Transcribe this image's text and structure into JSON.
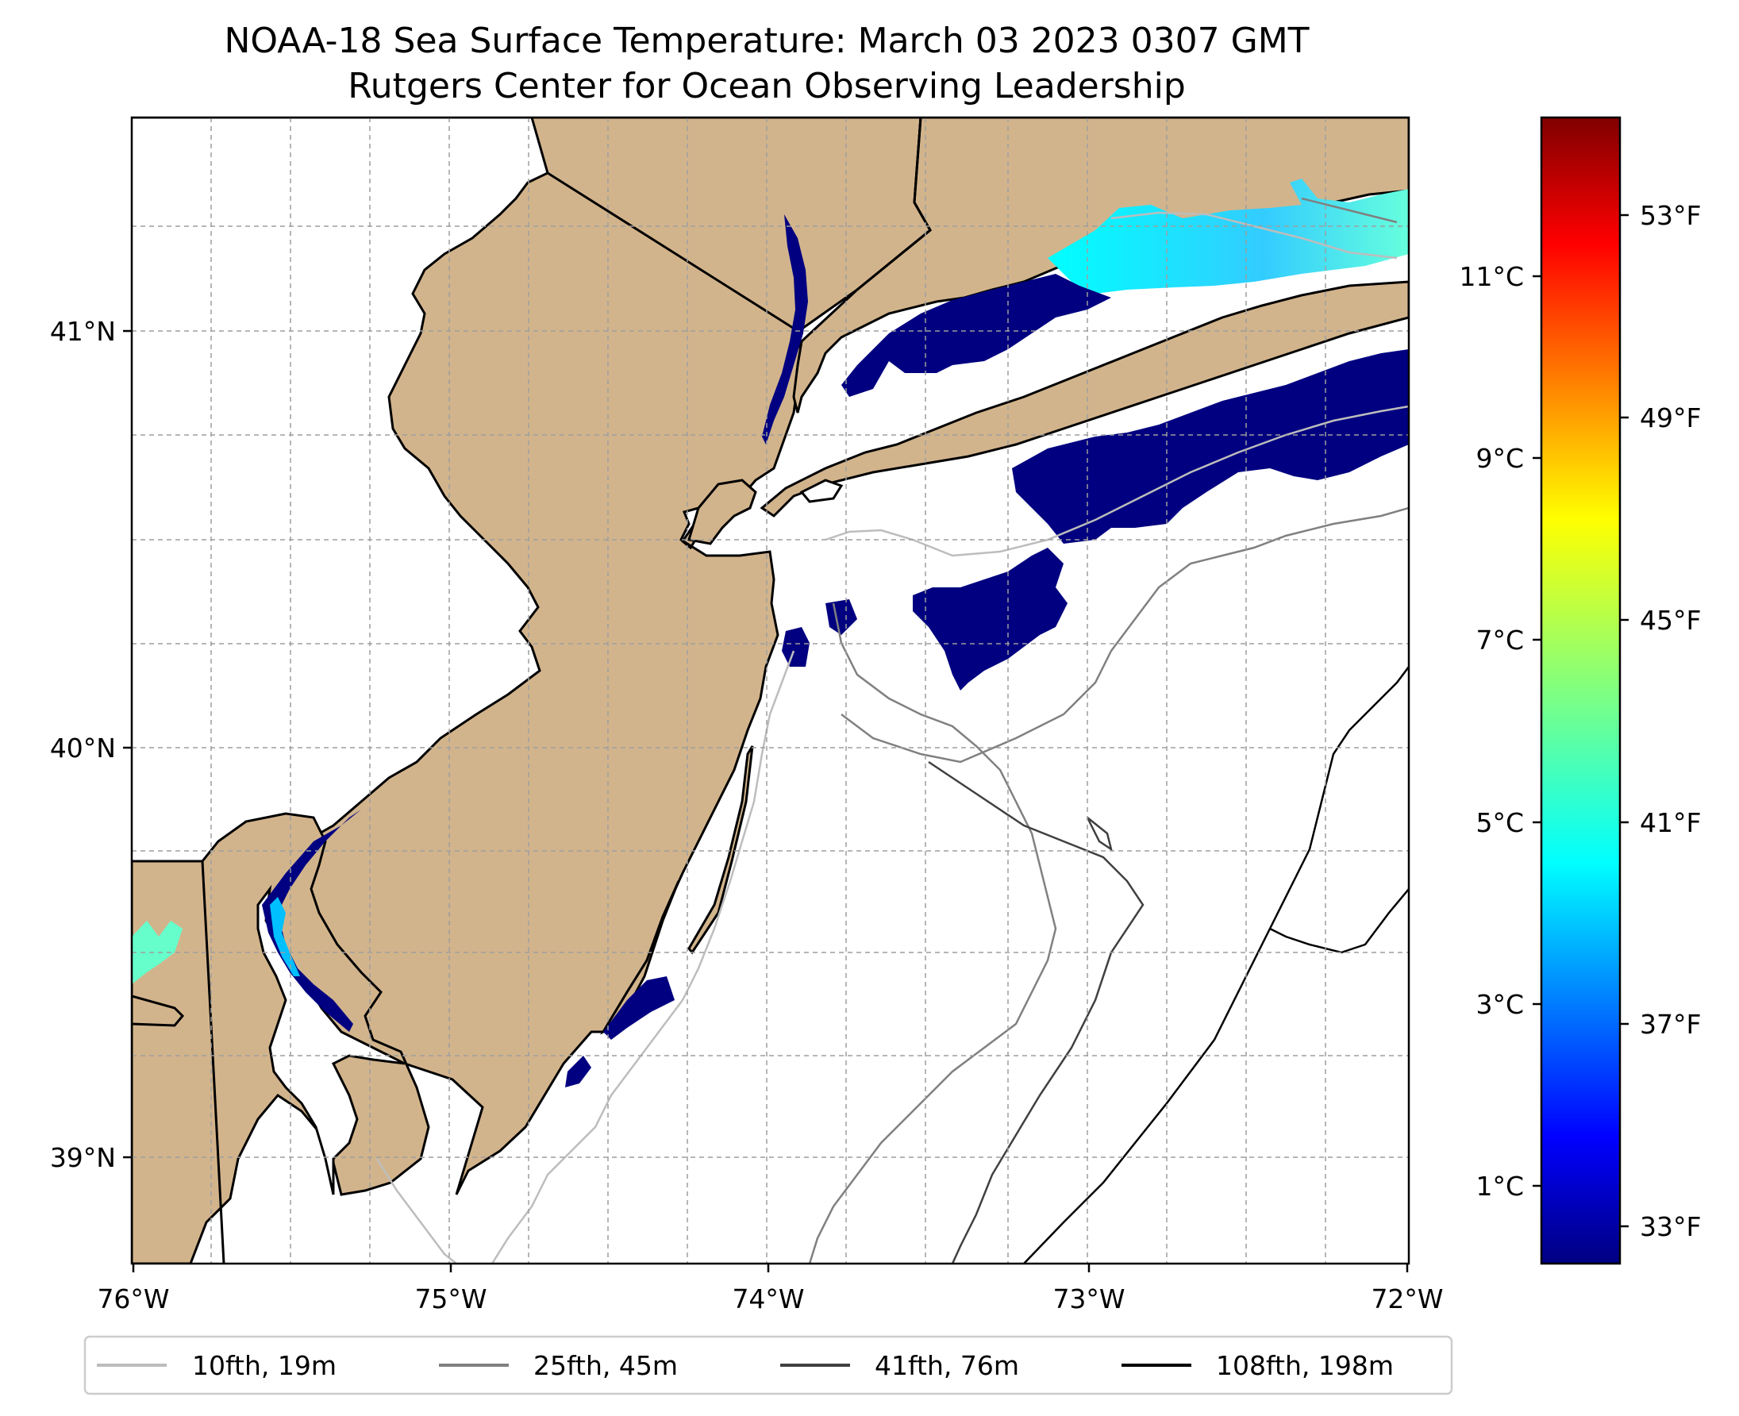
{
  "title": {
    "line1": "NOAA-18 Sea Surface Temperature: March 03 2023 0307 GMT",
    "line2": "Rutgers Center for Ocean Observing Leadership"
  },
  "map": {
    "x_ticks": [
      "76°W",
      "75°W",
      "74°W",
      "73°W",
      "72°W"
    ],
    "y_ticks": [
      "41°N",
      "40°N",
      "39°N"
    ],
    "land_color": "#D2B48C",
    "water_color": "#ffffff",
    "grid": true
  },
  "colorbar": {
    "celsius_ticks": [
      "11°C",
      "9°C",
      "7°C",
      "5°C",
      "3°C",
      "1°C"
    ],
    "fahrenheit_ticks": [
      "53°F",
      "49°F",
      "45°F",
      "41°F",
      "37°F",
      "33°F"
    ],
    "colormap": "jet",
    "colors": [
      "#000080",
      "#0000ff",
      "#0080ff",
      "#00ffff",
      "#80ff80",
      "#ffff00",
      "#ff8000",
      "#ff0000",
      "#800000"
    ]
  },
  "legend": {
    "items": [
      {
        "label": "10fth, 19m",
        "color": "#bdbdbd"
      },
      {
        "label": "25fth, 45m",
        "color": "#808080"
      },
      {
        "label": "41fth, 76m",
        "color": "#404040"
      },
      {
        "label": "108fth, 198m",
        "color": "#000000"
      }
    ],
    "placement": "bottom"
  }
}
